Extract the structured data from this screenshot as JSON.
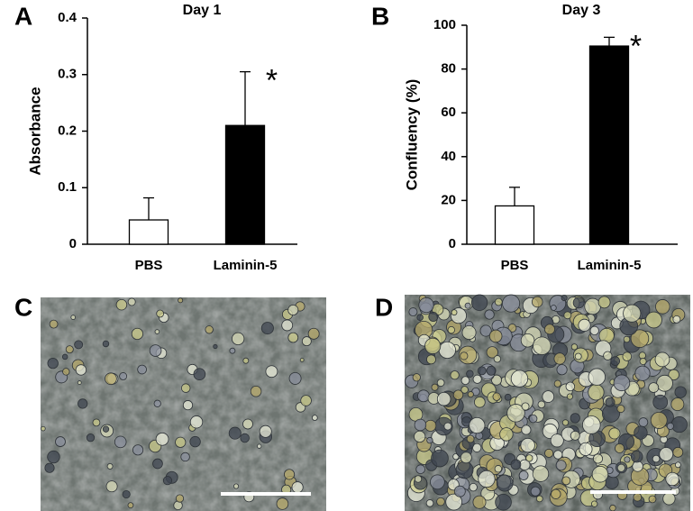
{
  "chart_data": [
    {
      "type": "bar",
      "panel": "A",
      "title": "Day 1",
      "y_label": "Absorbance",
      "categories": [
        "PBS",
        "Laminin-5"
      ],
      "values": [
        0.043,
        0.21
      ],
      "errors": [
        0.039,
        0.095
      ],
      "colors": [
        "#ffffff",
        "#000000"
      ],
      "annotation": "*",
      "ylim": [
        0,
        0.4
      ],
      "yticks": [
        0,
        0.1,
        0.2,
        0.3,
        0.4
      ]
    },
    {
      "type": "bar",
      "panel": "B",
      "title": "Day 3",
      "y_label": "Confluency (%)",
      "categories": [
        "PBS",
        "Laminin-5"
      ],
      "values": [
        17.5,
        90.5
      ],
      "errors": [
        8.5,
        4
      ],
      "colors": [
        "#ffffff",
        "#000000"
      ],
      "annotation": "*",
      "ylim": [
        0,
        100
      ],
      "yticks": [
        0,
        20,
        40,
        60,
        80,
        100
      ]
    }
  ],
  "images": [
    {
      "label": "C"
    },
    {
      "label": "D"
    }
  ]
}
